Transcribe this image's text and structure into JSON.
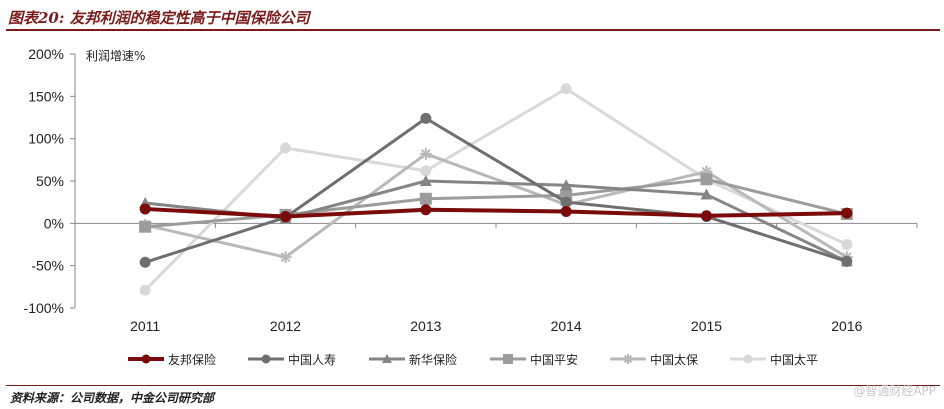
{
  "header": {
    "title": "图表20: 友邦利润的稳定性高于中国保险公司",
    "color": "#7a1c1c"
  },
  "footer": {
    "source": "资料来源：公司数据，中金公司研究部",
    "watermark": "@智通财经APP"
  },
  "chart_data": {
    "type": "line",
    "ylabel": "利润增速%",
    "categories": [
      "2011",
      "2012",
      "2013",
      "2014",
      "2015",
      "2016"
    ],
    "y_unit": "%",
    "ylim": [
      -100,
      200
    ],
    "yticks": [
      -100,
      -50,
      0,
      50,
      100,
      150,
      200
    ],
    "ytick_labels": [
      "-100%",
      "-50%",
      "0%",
      "50%",
      "100%",
      "150%",
      "200%"
    ],
    "grid": false,
    "legend_position": "bottom",
    "series": [
      {
        "name": "友邦保险",
        "values": [
          17,
          8,
          16,
          14,
          9,
          12
        ],
        "color": "#7b0b0b",
        "marker": "circle",
        "width": 4
      },
      {
        "name": "中国人寿",
        "values": [
          -46,
          7,
          124,
          25,
          8,
          -45
        ],
        "color": "#6f6f6f",
        "marker": "circle",
        "width": 3
      },
      {
        "name": "新华保险",
        "values": [
          24,
          6,
          50,
          45,
          34,
          -45
        ],
        "color": "#858585",
        "marker": "triangle",
        "width": 3
      },
      {
        "name": "中国平安",
        "values": [
          -4,
          10,
          29,
          33,
          52,
          11
        ],
        "color": "#9c9c9c",
        "marker": "square",
        "width": 3
      },
      {
        "name": "中国太保",
        "values": [
          -2,
          -40,
          82,
          22,
          61,
          -40
        ],
        "color": "#b9b9b9",
        "marker": "star",
        "width": 3
      },
      {
        "name": "中国太平",
        "values": [
          -79,
          89,
          62,
          159,
          52,
          -25
        ],
        "color": "#d9d9d9",
        "marker": "circle",
        "width": 3
      }
    ]
  }
}
